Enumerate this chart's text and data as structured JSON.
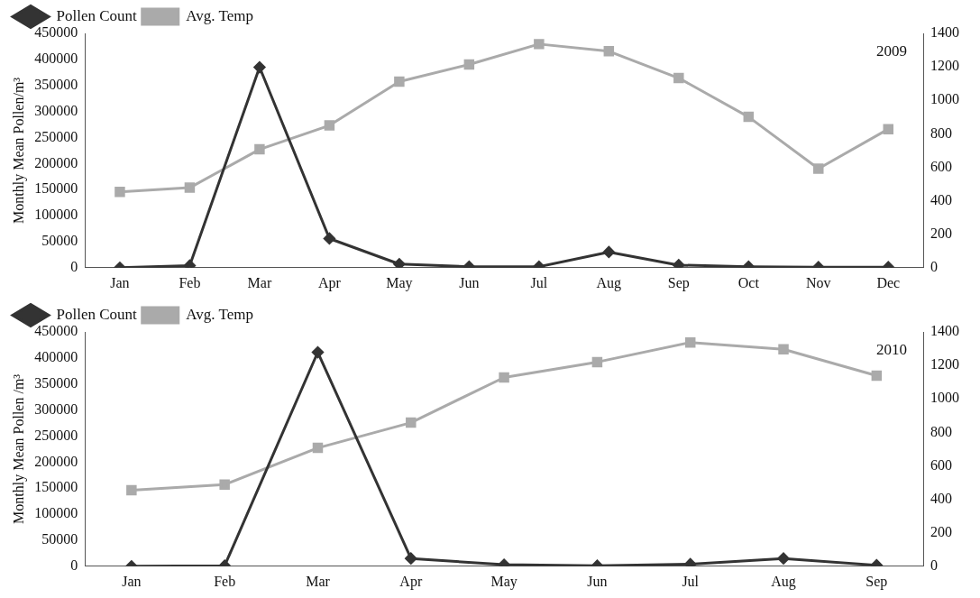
{
  "chart_data": [
    {
      "type": "line",
      "ylabel": "Monthly Mean Pollen/m³",
      "annotations": [
        "2009"
      ],
      "legend": "top left",
      "grid": false,
      "categories": [
        "Jan",
        "Feb",
        "Mar",
        "Apr",
        "May",
        "Jun",
        "Jul",
        "Aug",
        "Sep",
        "Oct",
        "Nov",
        "Dec"
      ],
      "ylim": [
        0,
        450000
      ],
      "yticks": [
        0,
        50000,
        100000,
        150000,
        200000,
        250000,
        300000,
        350000,
        400000,
        450000
      ],
      "y2lim": [
        0,
        1400
      ],
      "y2ticks": [
        0,
        200,
        400,
        600,
        800,
        1000,
        1200,
        1400
      ],
      "series": [
        {
          "name": "Pollen Count",
          "color": "#333333",
          "marker": "diamond",
          "values": [
            0,
            4000,
            385000,
            56000,
            7000,
            2000,
            2000,
            30000,
            5000,
            2000,
            1000,
            1000
          ]
        },
        {
          "name": "Avg. Temp",
          "color": "#aaaaaa",
          "marker": "square",
          "axis": "y2",
          "values": [
            453,
            478,
            707,
            850,
            1112,
            1214,
            1336,
            1293,
            1133,
            901,
            592,
            828
          ]
        }
      ]
    },
    {
      "type": "line",
      "ylabel": "Monthly Mean Pollen /m³",
      "annotations": [
        "2010"
      ],
      "legend": "top left",
      "grid": false,
      "categories": [
        "Jan",
        "Feb",
        "Mar",
        "Apr",
        "May",
        "Jun",
        "Jul",
        "Aug",
        "Sep"
      ],
      "ylim": [
        0,
        450000
      ],
      "yticks": [
        0,
        50000,
        100000,
        150000,
        200000,
        250000,
        300000,
        350000,
        400000,
        450000
      ],
      "y2lim": [
        0,
        1400
      ],
      "y2ticks": [
        0,
        200,
        400,
        600,
        800,
        1000,
        1200,
        1400
      ],
      "series": [
        {
          "name": "Pollen Count",
          "color": "#333333",
          "marker": "diamond",
          "values": [
            0,
            1000,
            411000,
            15000,
            3000,
            1000,
            4000,
            15000,
            2000
          ]
        },
        {
          "name": "Avg. Temp",
          "color": "#aaaaaa",
          "marker": "square",
          "axis": "y2",
          "values": [
            454,
            488,
            707,
            858,
            1128,
            1220,
            1337,
            1296,
            1139
          ]
        }
      ]
    }
  ]
}
